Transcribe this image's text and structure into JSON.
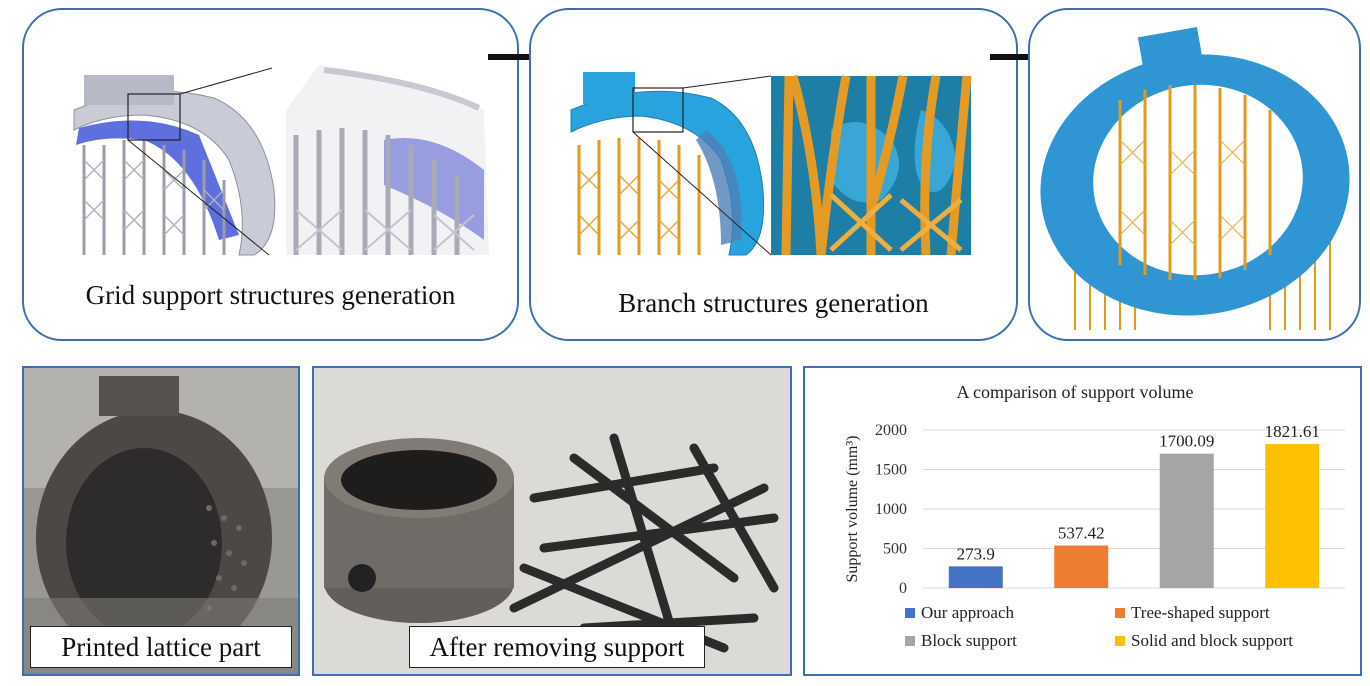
{
  "panels": {
    "grid_caption": "Grid support structures generation",
    "branch_caption": "Branch structures generation",
    "printed_label": "Printed lattice part",
    "removed_label": "After removing support"
  },
  "chart_data": {
    "type": "bar",
    "title": "A comparison of support volume",
    "ylabel": "Support volume (mm³)",
    "categories": [
      "Our approach",
      "Tree-shaped support",
      "Block support",
      "Solid and block support"
    ],
    "values": [
      273.9,
      537.42,
      1700.09,
      1821.61
    ],
    "value_labels": [
      "273.9",
      "537.42",
      "1700.09",
      "1821.61"
    ],
    "colors": [
      "#4472c4",
      "#ed7d31",
      "#a5a5a5",
      "#ffc000"
    ],
    "ylim": [
      0,
      2000
    ],
    "yticks": [
      "0",
      "500",
      "1000",
      "1500",
      "2000"
    ],
    "grid": true,
    "legend_position": "bottom"
  }
}
